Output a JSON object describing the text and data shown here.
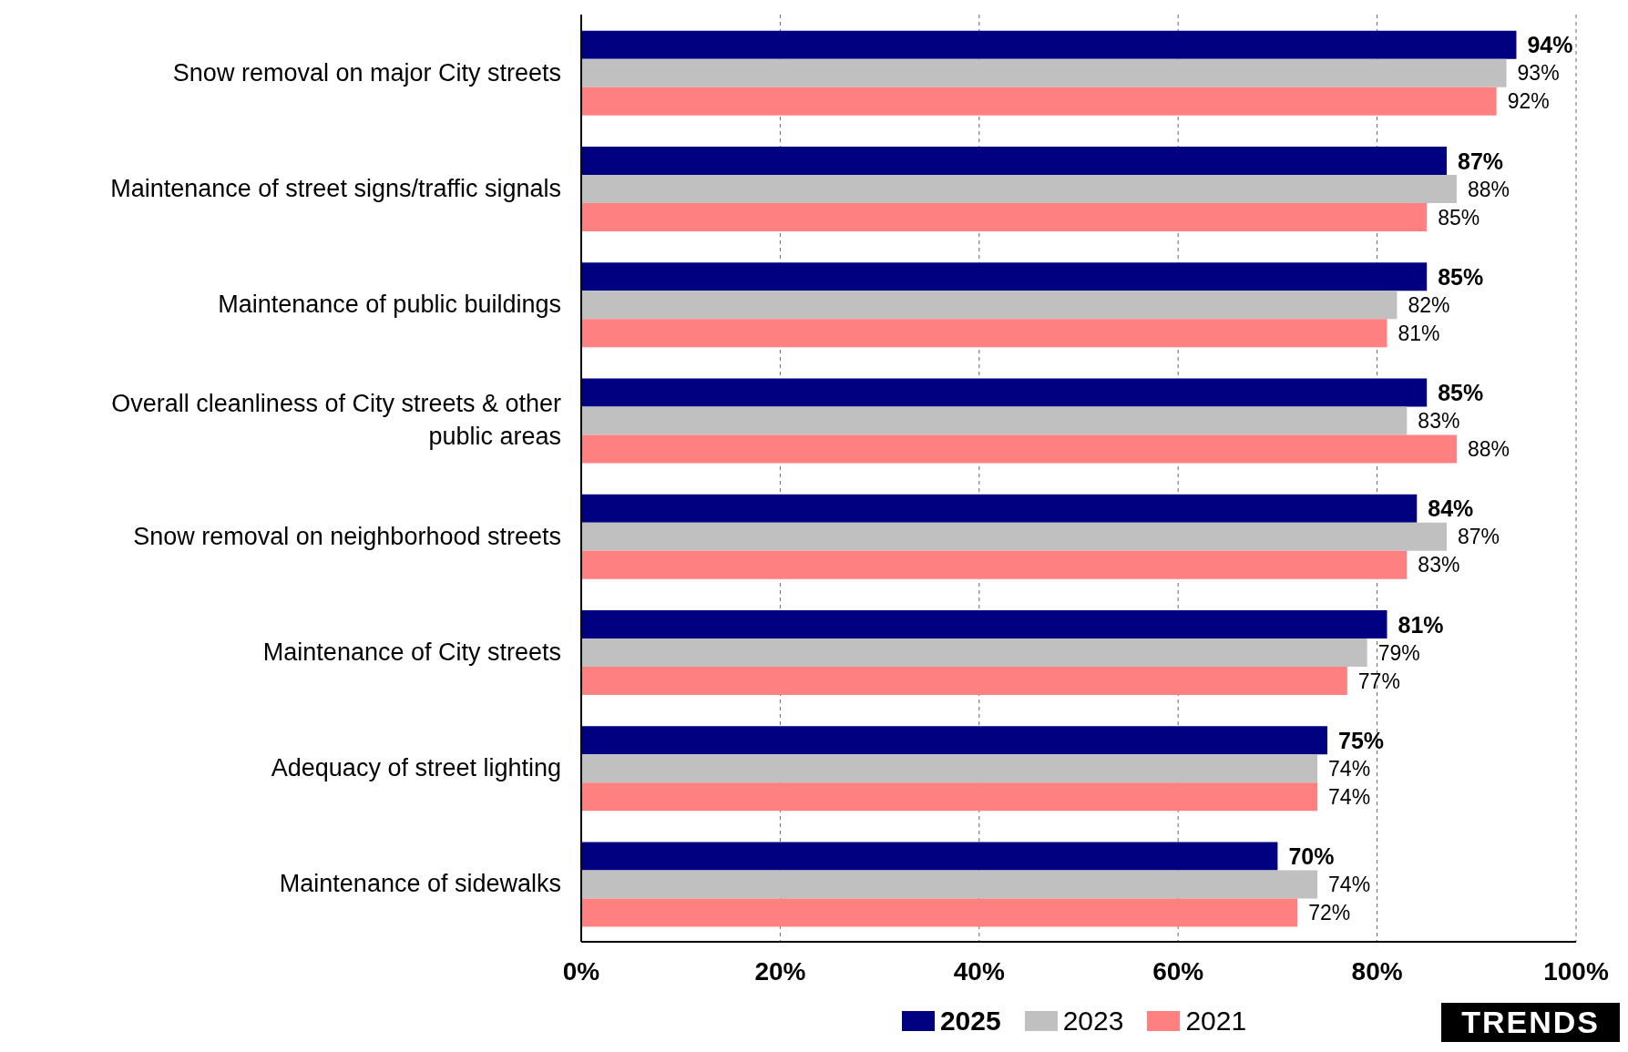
{
  "chart_data": {
    "type": "bar",
    "orientation": "horizontal",
    "categories": [
      "Snow removal on major City streets",
      "Maintenance of street signs/traffic signals",
      "Maintenance of public buildings",
      "Overall cleanliness of City streets & other public areas",
      "Snow removal on neighborhood streets",
      "Maintenance of City streets",
      "Adequacy of street lighting",
      "Maintenance of sidewalks"
    ],
    "series": [
      {
        "name": "2025",
        "color": "#000080",
        "values": [
          94,
          87,
          85,
          85,
          84,
          81,
          75,
          70
        ],
        "value_labels": [
          "94%",
          "87%",
          "85%",
          "85%",
          "84%",
          "81%",
          "75%",
          "70%"
        ]
      },
      {
        "name": "2023",
        "color": "#c0c0c0",
        "values": [
          93,
          88,
          82,
          83,
          87,
          79,
          74,
          74
        ],
        "value_labels": [
          "93%",
          "88%",
          "82%",
          "83%",
          "87%",
          "79%",
          "74%",
          "74%"
        ]
      },
      {
        "name": "2021",
        "color": "#ff8080",
        "values": [
          92,
          85,
          81,
          88,
          83,
          77,
          74,
          72
        ],
        "value_labels": [
          "92%",
          "85%",
          "81%",
          "88%",
          "83%",
          "77%",
          "74%",
          "72%"
        ]
      }
    ],
    "xlim": [
      0,
      100
    ],
    "xticks": [
      {
        "value": 0,
        "label": "0%"
      },
      {
        "value": 20,
        "label": "20%"
      },
      {
        "value": 40,
        "label": "40%"
      },
      {
        "value": 60,
        "label": "60%"
      },
      {
        "value": 80,
        "label": "80%"
      },
      {
        "value": 100,
        "label": "100%"
      }
    ],
    "grid": "x",
    "legend": "bottom",
    "annotations": [
      "TRENDS"
    ]
  }
}
